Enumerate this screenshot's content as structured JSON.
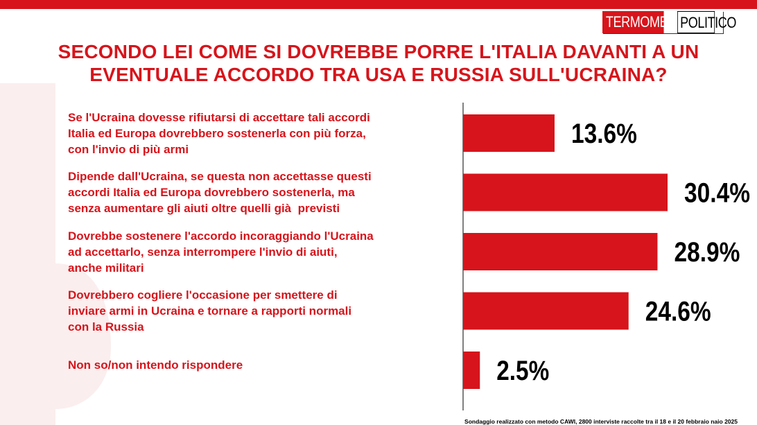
{
  "colors": {
    "accent": "#d7141b",
    "text": "#000000",
    "axis": "#000000"
  },
  "brand": {
    "part1": "TERMOMETRO",
    "part2": "POLITICO"
  },
  "header": {
    "title_line1": "SECONDO LEI COME SI DOVREBBE PORRE L'ITALIA DAVANTI A UN",
    "title_line2": "EVENTUALE ACCORDO TRA USA E RUSSIA SULL'UCRAINA?"
  },
  "chart_data": {
    "type": "bar",
    "orientation": "horizontal",
    "categories": [
      "Se l'Ucraina dovesse rifiutarsi di accettare tali accordi\nItalia ed Europa dovrebbero sostenerla con più forza,\ncon l'invio di più armi",
      "Dipende dall'Ucraina, se questa non accettasse questi\naccordi Italia ed Europa dovrebbero sostenerla, ma\nsenza aumentare gli aiuti oltre quelli già  previsti",
      "Dovrebbe sostenere l'accordo incoraggiando l'Ucraina\nad accettarlo, senza interrompere l'invio di aiuti,\nanche militari",
      "Dovrebbero cogliere l'occasione per smettere di\ninviare armi in Ucraina e tornare a rapporti normali\ncon la Russia",
      "Non so/non intendo rispondere"
    ],
    "values": [
      13.6,
      30.4,
      28.9,
      24.6,
      2.5
    ],
    "value_labels": [
      "13.6%",
      "30.4%",
      "28.9%",
      "24.6%",
      "2.5%"
    ],
    "xlim": [
      0,
      30.4
    ],
    "grid": false,
    "legend": "none"
  },
  "footnote": "Sondaggio realizzato con metodo CAWI, 2800 interviste raccolte tra il 18 e il 20 febbraio naio 2025"
}
